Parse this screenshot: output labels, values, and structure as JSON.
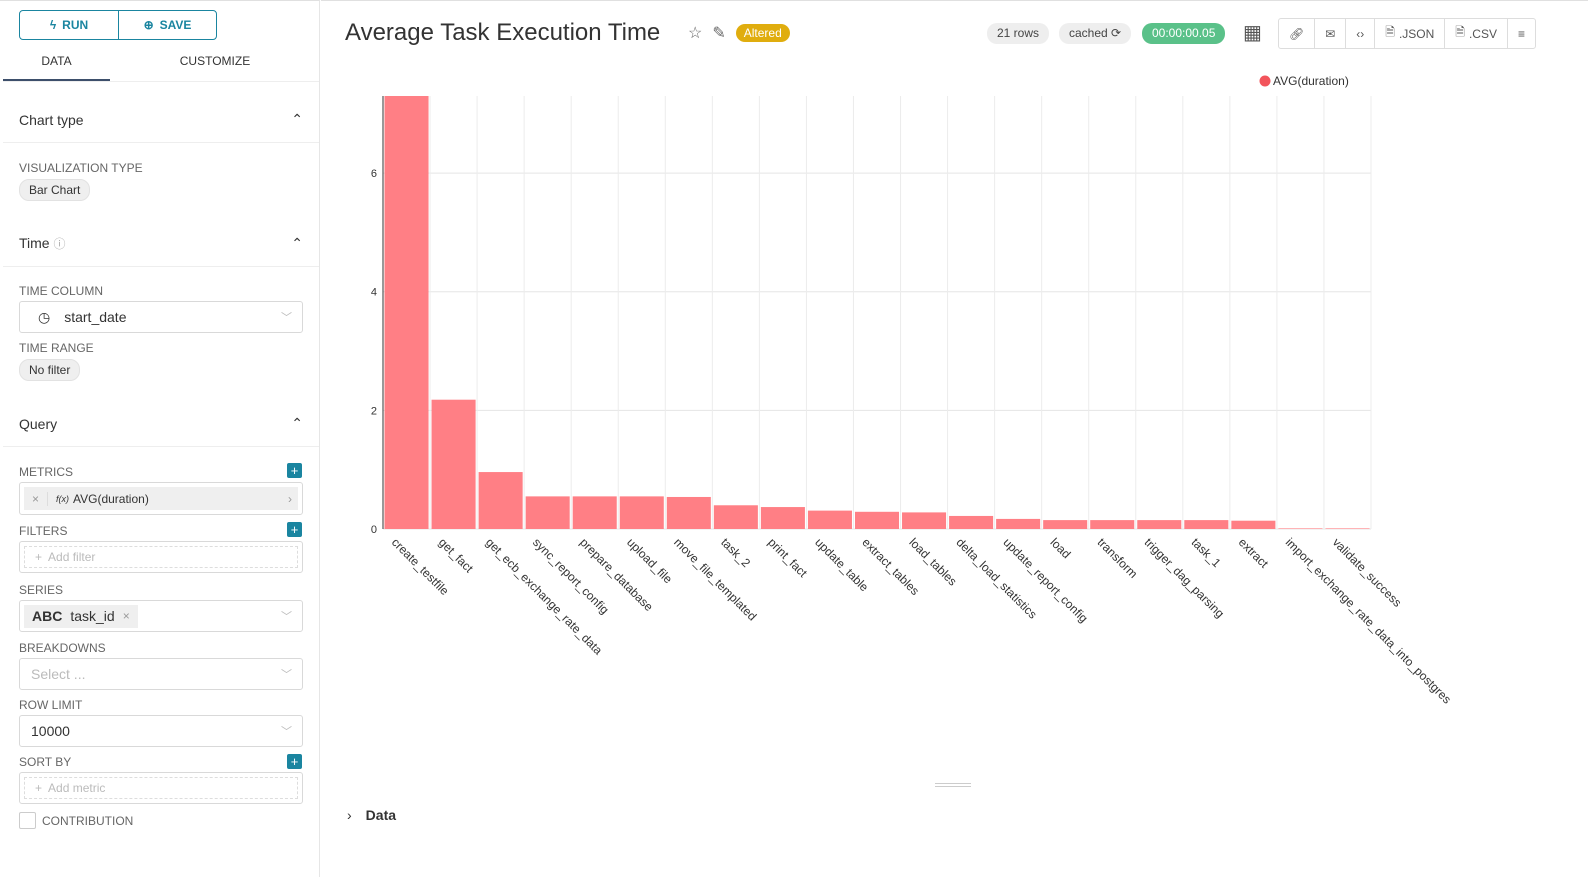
{
  "sidebar": {
    "run": "RUN",
    "save": "SAVE",
    "tabs": [
      "DATA",
      "CUSTOMIZE"
    ],
    "chart_type": {
      "title": "Chart type",
      "viz_label": "VISUALIZATION TYPE",
      "viz_value": "Bar Chart"
    },
    "time": {
      "title": "Time",
      "col_label": "TIME COLUMN",
      "col_value": "start_date",
      "range_label": "TIME RANGE",
      "range_value": "No filter"
    },
    "query": {
      "title": "Query",
      "metrics_label": "METRICS",
      "metric": "AVG(duration)",
      "metric_fx": "f(x)",
      "filters_label": "FILTERS",
      "filters_placeholder": "Add filter",
      "series_label": "SERIES",
      "series_type": "ABC",
      "series_value": "task_id",
      "breakdowns_label": "BREAKDOWNS",
      "breakdowns_placeholder": "Select ...",
      "row_limit_label": "ROW LIMIT",
      "row_limit": "10000",
      "sort_label": "SORT BY",
      "sort_placeholder": "Add metric",
      "contribution": "CONTRIBUTION"
    }
  },
  "header": {
    "title": "Average Task Execution Time",
    "altered": "Altered",
    "rows": "21 rows",
    "cached": "cached",
    "duration": "00:00:00.05",
    "json": ".JSON",
    "csv": ".CSV"
  },
  "data_section": "Data",
  "colors": {
    "bar": "#ff7f85",
    "accent": "#1a85a0",
    "altered": "#e0ad0e",
    "timer": "#5ac189"
  },
  "chart_data": {
    "type": "bar",
    "legend": "AVG(duration)",
    "legend_position": "top-right",
    "grid": true,
    "ylim": [
      0,
      7.3
    ],
    "yticks": [
      "0",
      "2",
      "4",
      "6"
    ],
    "categories": [
      "create_testfile",
      "get_fact",
      "get_ecb_exchange_rate_data",
      "sync_report_config",
      "prepare_database",
      "upload_file",
      "move_file_templated",
      "task_2",
      "print_fact",
      "update_table",
      "extract_tables",
      "load_tables",
      "delta_load_statistics",
      "update_report_config",
      "load",
      "transform",
      "trigger_dag_parsing",
      "task_1",
      "extract",
      "import_exchange_rate_data_into_postgres",
      "validate_success"
    ],
    "values": [
      7.3,
      2.18,
      0.96,
      0.55,
      0.55,
      0.55,
      0.54,
      0.4,
      0.37,
      0.31,
      0.29,
      0.28,
      0.22,
      0.17,
      0.15,
      0.15,
      0.15,
      0.15,
      0.14,
      0.01,
      0.01
    ]
  }
}
